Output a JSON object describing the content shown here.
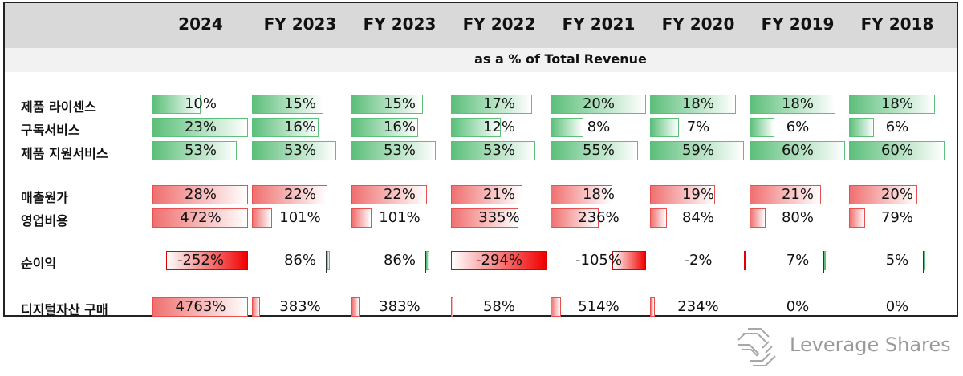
{
  "chart_data": {
    "type": "table",
    "subtitle": "as a % of Total Revenue",
    "columns": [
      "2024",
      "FY 2023",
      "FY 2023",
      "FY 2022",
      "FY 2021",
      "FY 2020",
      "FY 2019",
      "FY 2018"
    ],
    "rows": [
      {
        "label": "제품 라이센스",
        "color": "green",
        "values": [
          10,
          15,
          15,
          17,
          20,
          18,
          18,
          18
        ],
        "text": [
          "10%",
          "15%",
          "15%",
          "17%",
          "20%",
          "18%",
          "18%",
          "18%"
        ]
      },
      {
        "label": "구독서비스",
        "color": "green",
        "values": [
          23,
          16,
          16,
          12,
          8,
          7,
          6,
          6
        ],
        "text": [
          "23%",
          "16%",
          "16%",
          "12%",
          "8%",
          "7%",
          "6%",
          "6%"
        ]
      },
      {
        "label": "제품 지원서비스",
        "color": "green",
        "values": [
          53,
          53,
          53,
          53,
          55,
          59,
          60,
          60
        ],
        "text": [
          "53%",
          "53%",
          "53%",
          "53%",
          "55%",
          "59%",
          "60%",
          "60%"
        ]
      },
      {
        "label": "매출원가",
        "color": "red",
        "values": [
          28,
          22,
          22,
          21,
          18,
          19,
          21,
          20
        ],
        "text": [
          "28%",
          "22%",
          "22%",
          "21%",
          "18%",
          "19%",
          "21%",
          "20%"
        ]
      },
      {
        "label": "영업비용",
        "color": "red",
        "values": [
          472,
          101,
          101,
          335,
          236,
          84,
          80,
          79
        ],
        "text": [
          "472%",
          "101%",
          "101%",
          "335%",
          "236%",
          "84%",
          "80%",
          "79%"
        ]
      },
      {
        "label": "순이익",
        "color": "mixed",
        "values": [
          -252,
          86,
          86,
          -294,
          -105,
          -2,
          7,
          5
        ],
        "text": [
          "-252%",
          "86%",
          "86%",
          "-294%",
          "-105%",
          "-2%",
          "7%",
          "5%"
        ]
      },
      {
        "label": "디지털자산 구매",
        "color": "red",
        "values": [
          4763,
          383,
          383,
          58,
          514,
          234,
          0,
          0
        ],
        "text": [
          "4763%",
          "383%",
          "383%",
          "58%",
          "514%",
          "234%",
          "0%",
          "0%"
        ]
      }
    ]
  },
  "brand": {
    "name": "Leverage Shares",
    "logo_color": "#9a9a9a"
  },
  "colors": {
    "green": "#5cbf7a",
    "red": "#f07070",
    "negative": "#f00000",
    "header_bg": "#d9d9d9"
  }
}
